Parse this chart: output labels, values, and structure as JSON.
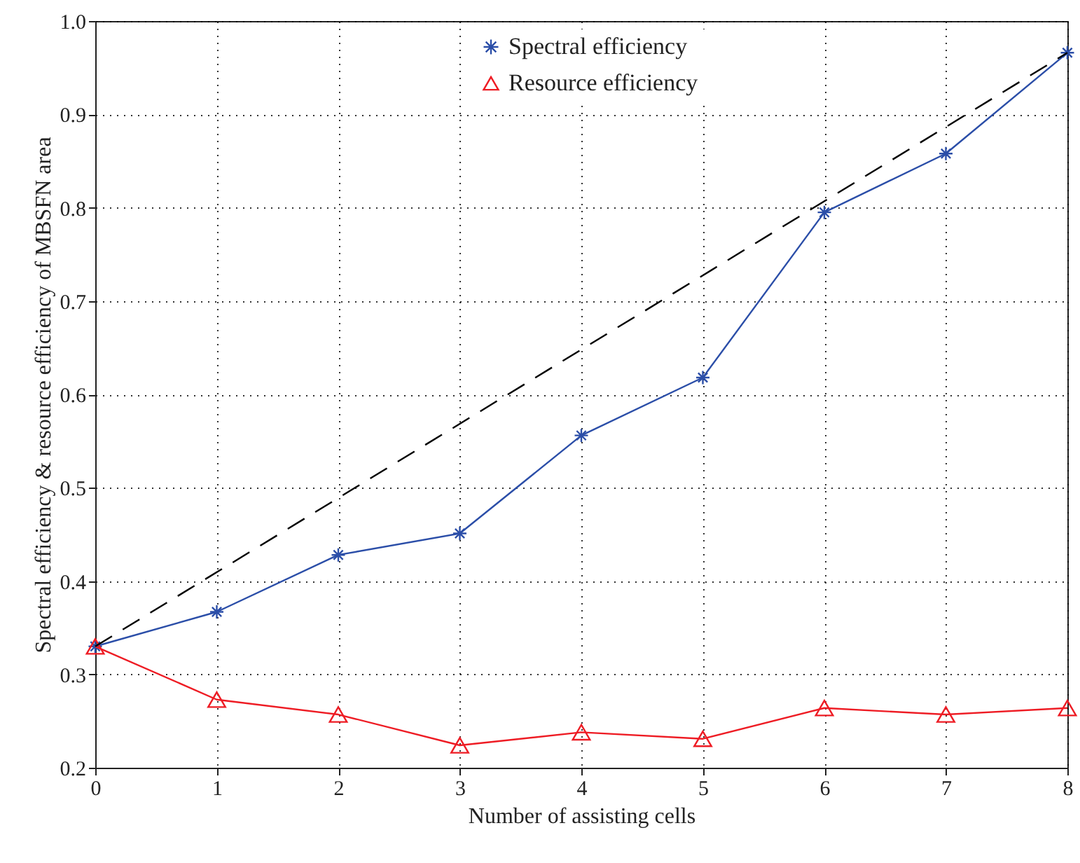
{
  "chart_data": {
    "type": "line",
    "xlabel": "Number of assisting cells",
    "ylabel": "Spectral efficiency & resource efficiency of MBSFN area",
    "x": [
      0,
      1,
      2,
      3,
      4,
      5,
      6,
      7,
      8
    ],
    "series": [
      {
        "name": "Spectral efficiency",
        "color": "#2b4ea8",
        "marker": "cross",
        "line_style": "solid",
        "values": [
          0.33,
          0.367,
          0.428,
          0.451,
          0.556,
          0.618,
          0.795,
          0.858,
          0.966
        ]
      },
      {
        "name": "Resource efficiency",
        "color": "#ee1c24",
        "marker": "triangle",
        "line_style": "solid",
        "values": [
          0.33,
          0.273,
          0.257,
          0.224,
          0.238,
          0.231,
          0.264,
          0.257,
          0.264
        ]
      },
      {
        "color": "#000000",
        "marker": "none",
        "line_style": "dashed",
        "x": [
          0,
          8
        ],
        "values": [
          0.33,
          0.966
        ]
      }
    ],
    "xlim": [
      0,
      8
    ],
    "xticks": [
      0,
      1,
      2,
      3,
      4,
      5,
      6,
      7,
      8
    ],
    "ylim": [
      0.2,
      1.0
    ],
    "yticks": [
      0.2,
      0.3,
      0.4,
      0.5,
      0.6,
      0.7,
      0.8,
      0.9,
      {
        "value": 1.0,
        "label": "1.0"
      }
    ],
    "grid": true,
    "legend": "top"
  }
}
